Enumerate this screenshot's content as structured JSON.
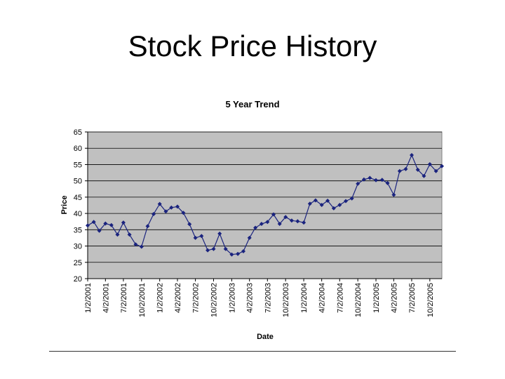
{
  "slide": {
    "title": "Stock Price History"
  },
  "chart_data": {
    "type": "line",
    "title": "5 Year Trend",
    "xlabel": "Date",
    "ylabel": "Price",
    "ylim": [
      20,
      65
    ],
    "yticks": [
      20,
      25,
      30,
      35,
      40,
      45,
      50,
      55,
      60,
      65
    ],
    "xlim": [
      "2001-01-02",
      "2005-12-02"
    ],
    "xticks": [
      "1/2/2001",
      "4/2/2001",
      "7/2/2001",
      "10/2/2001",
      "1/2/2002",
      "4/2/2002",
      "7/2/2002",
      "10/2/2002",
      "1/2/2003",
      "4/2/2003",
      "7/2/2003",
      "10/2/2003",
      "1/2/2004",
      "4/2/2004",
      "7/2/2004",
      "10/2/2004",
      "1/2/2005",
      "4/2/2005",
      "7/2/2005",
      "10/2/2005"
    ],
    "grid": true,
    "legend": "none",
    "colors": {
      "line": "#1a237e",
      "plot_bg": "#c0c0c0",
      "grid": "#000000"
    },
    "series": [
      {
        "x": [
          "2001-01-02",
          "2001-02-02",
          "2001-03-02",
          "2001-04-02",
          "2001-05-02",
          "2001-06-02",
          "2001-07-02",
          "2001-08-02",
          "2001-09-02",
          "2001-10-02",
          "2001-11-02",
          "2001-12-02",
          "2002-01-02",
          "2002-02-02",
          "2002-03-02",
          "2002-04-02",
          "2002-05-02",
          "2002-06-02",
          "2002-07-02",
          "2002-08-02",
          "2002-09-02",
          "2002-10-02",
          "2002-11-02",
          "2002-12-02",
          "2003-01-02",
          "2003-02-02",
          "2003-03-02",
          "2003-04-02",
          "2003-05-02",
          "2003-06-02",
          "2003-07-02",
          "2003-08-02",
          "2003-09-02",
          "2003-10-02",
          "2003-11-02",
          "2003-12-02",
          "2004-01-02",
          "2004-02-02",
          "2004-03-02",
          "2004-04-02",
          "2004-05-02",
          "2004-06-02",
          "2004-07-02",
          "2004-08-02",
          "2004-09-02",
          "2004-10-02",
          "2004-11-02",
          "2004-12-02",
          "2005-01-02",
          "2005-02-02",
          "2005-03-02",
          "2005-04-02",
          "2005-05-02",
          "2005-06-02",
          "2005-07-02",
          "2005-08-02",
          "2005-09-02",
          "2005-10-02",
          "2005-11-02",
          "2005-12-02"
        ],
        "values": [
          36.3,
          37.4,
          34.7,
          36.9,
          36.4,
          33.5,
          37.2,
          33.5,
          30.5,
          29.8,
          36.1,
          39.8,
          42.9,
          40.6,
          41.8,
          42.1,
          40.2,
          36.7,
          32.5,
          33.1,
          28.7,
          29.1,
          33.8,
          29.1,
          27.4,
          27.6,
          28.4,
          32.5,
          35.6,
          36.8,
          37.4,
          39.7,
          36.8,
          38.9,
          37.8,
          37.6,
          37.2,
          43.0,
          44.0,
          42.6,
          43.9,
          41.6,
          42.6,
          43.8,
          44.6,
          49.1,
          50.4,
          50.9,
          50.2,
          50.3,
          49.3,
          45.7,
          53.0,
          53.6,
          57.9,
          53.4,
          51.5,
          55.1,
          53.0,
          54.5
        ]
      }
    ]
  }
}
